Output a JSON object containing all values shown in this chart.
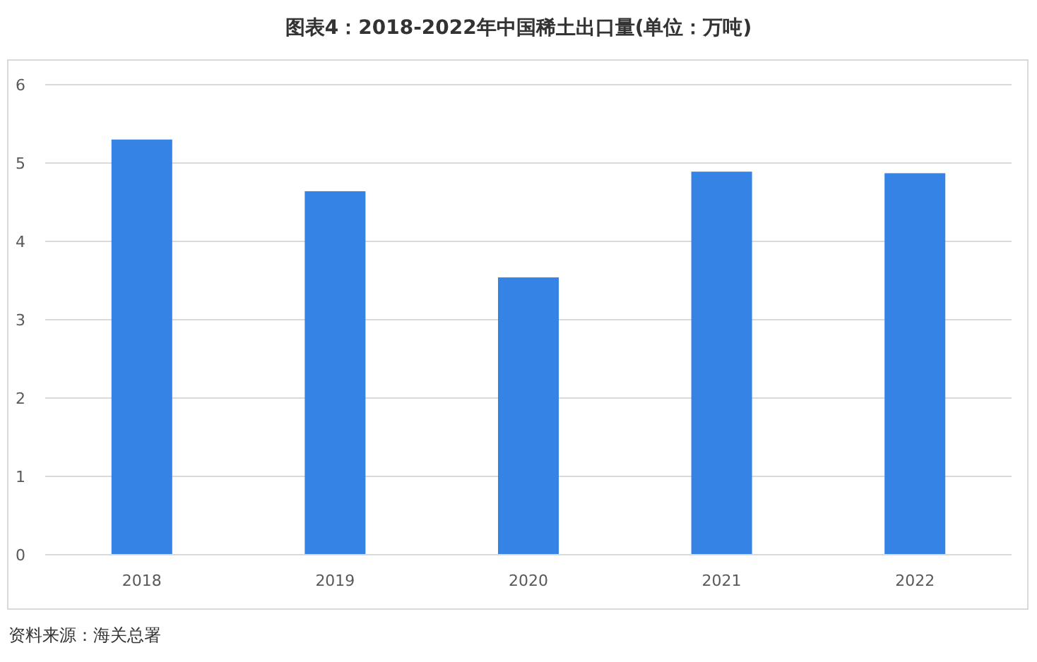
{
  "chart_data": {
    "type": "bar",
    "title": "图表4：2018-2022年中国稀土出口量(单位：万吨)",
    "categories": [
      "2018",
      "2019",
      "2020",
      "2021",
      "2022"
    ],
    "values": [
      5.3,
      4.64,
      3.54,
      4.89,
      4.87
    ],
    "color": "#3683e6",
    "ylim": [
      0,
      6
    ],
    "yticks": [
      0,
      1,
      2,
      3,
      4,
      5,
      6
    ],
    "grid": "y",
    "annotations": [
      "资料来源：海关总署"
    ]
  }
}
